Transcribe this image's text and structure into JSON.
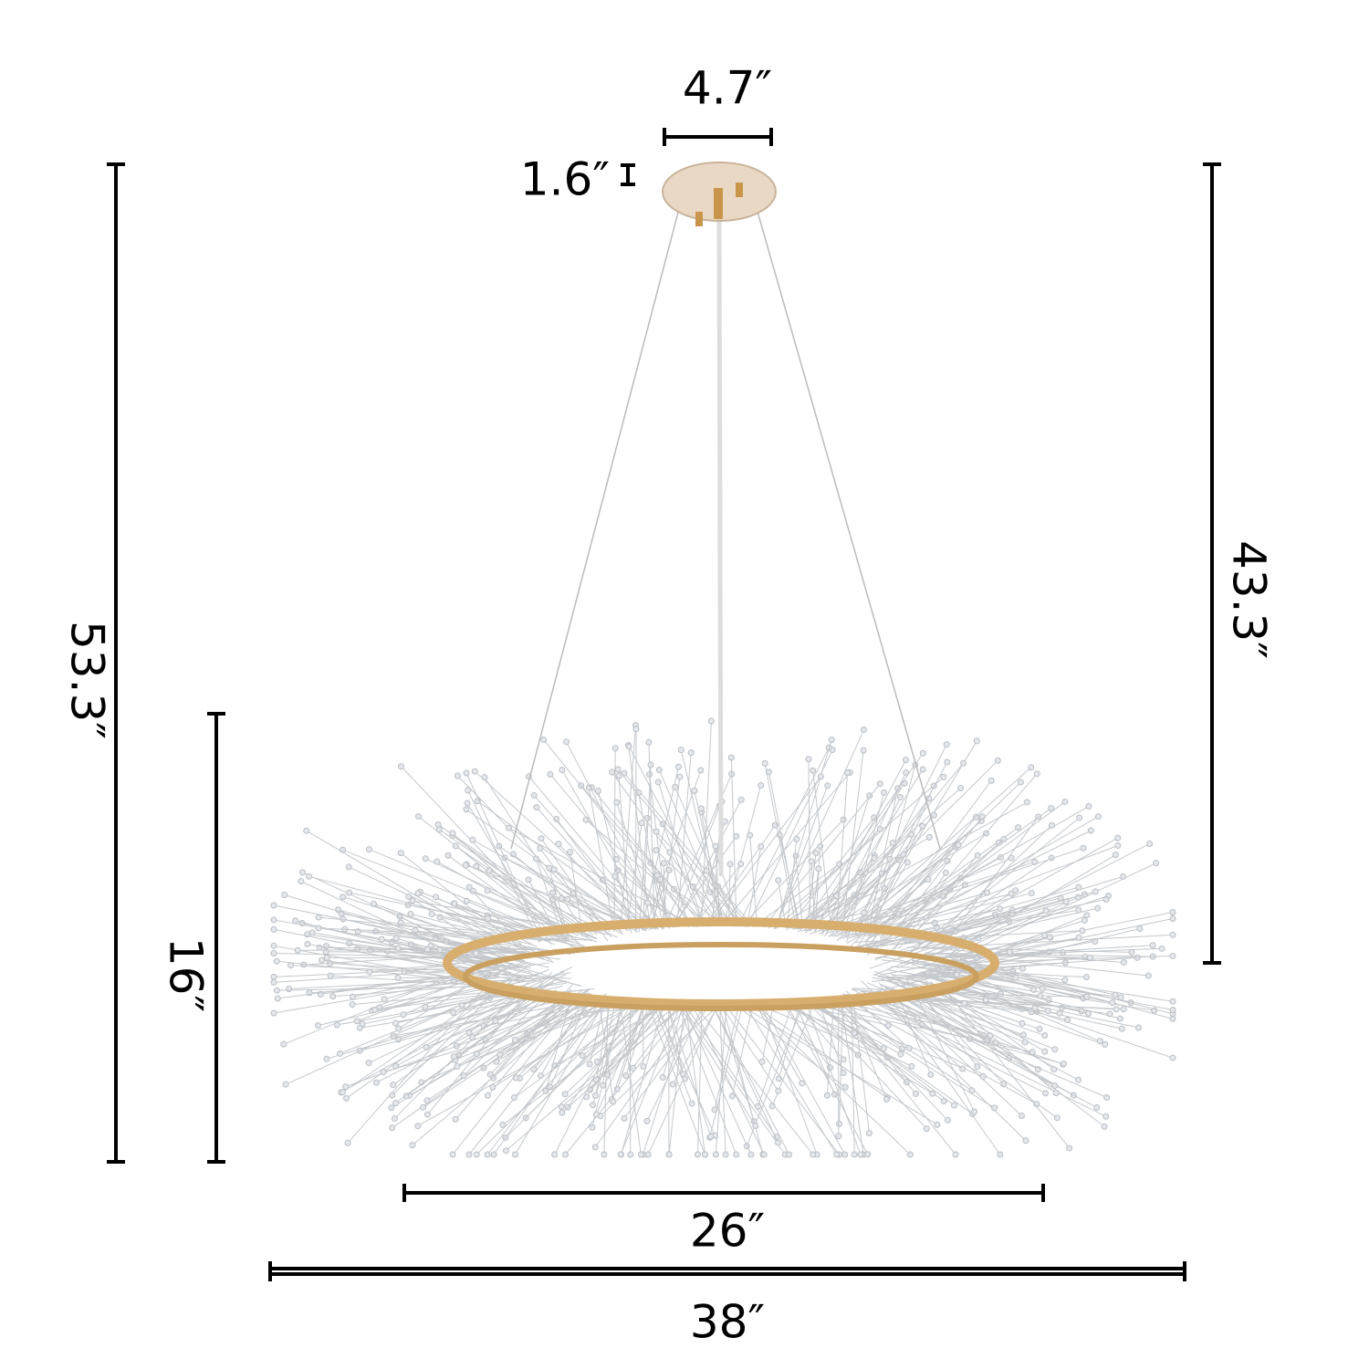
{
  "dimensions": {
    "canopy_width": "4.7″",
    "canopy_height": "1.6″",
    "total_height": "53.3″",
    "hanging_height": "43.3″",
    "body_height": "16″",
    "ring_diameter": "26″",
    "total_diameter": "38″"
  }
}
